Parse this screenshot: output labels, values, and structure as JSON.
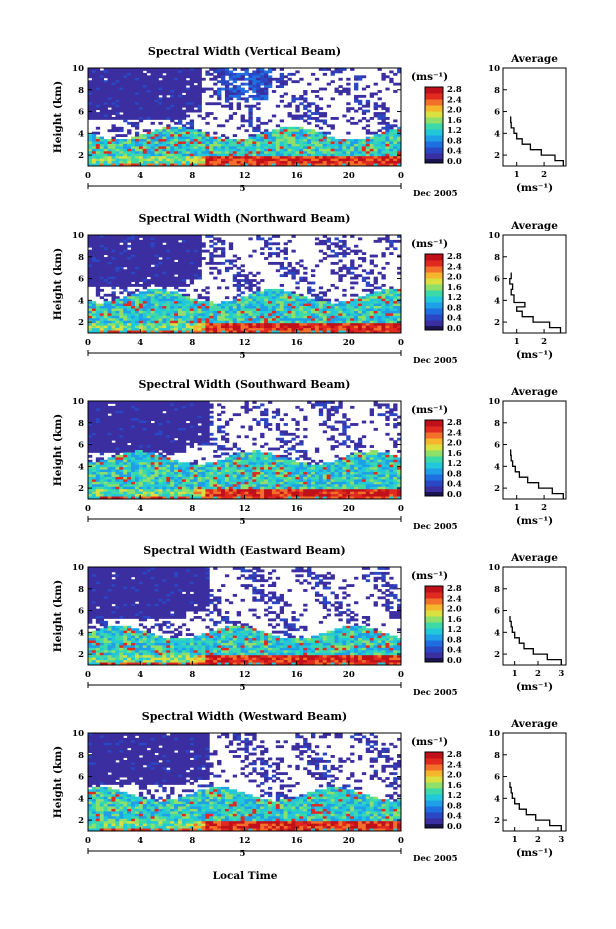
{
  "colors": {
    "scale": [
      "#3b2ea0",
      "#2a47c4",
      "#1f6fe0",
      "#1e9fe8",
      "#22c8d9",
      "#3dd9a8",
      "#8ee06a",
      "#d9e040",
      "#f5b62e",
      "#f2702a",
      "#e02a20",
      "#c0101a"
    ],
    "zero_band": "#1a1450",
    "white": "#ffffff"
  },
  "common": {
    "ylabel": "Height (km)",
    "height_ticks": [
      "2",
      "4",
      "6",
      "8",
      "10"
    ],
    "time_ticks": [
      "0",
      "4",
      "8",
      "12",
      "16",
      "20",
      "0"
    ],
    "date_label": "Dec 2005",
    "date_day": "5",
    "colorbar_unit": "(ms⁻¹)",
    "colorbar_ticks": [
      "0.0",
      "0.4",
      "0.8",
      "1.2",
      "1.6",
      "2.0",
      "2.4",
      "2.8"
    ],
    "avg_title": "Average",
    "avg_xlabel": "(ms⁻¹)",
    "xlabel": "Local Time"
  },
  "chart_data": [
    {
      "type": "heatmap",
      "title": "Spectral Width (Vertical Beam)",
      "beam": "vertical",
      "xlim": [
        0,
        24
      ],
      "ylim": [
        1,
        10
      ],
      "zlim": [
        0,
        2.8
      ],
      "z_unit": "ms-1",
      "profile": {
        "type": "line",
        "title": "Average",
        "xticks": [
          "1",
          "2"
        ],
        "xlim": [
          0.5,
          2.8
        ],
        "ylim": [
          1,
          10
        ],
        "x": [
          2.7,
          2.4,
          1.9,
          1.5,
          1.2,
          1.0,
          0.9,
          0.8,
          0.78,
          0.8
        ],
        "y": [
          1,
          1.5,
          2,
          2.5,
          3,
          3.5,
          4,
          4.5,
          5,
          5.5
        ]
      }
    },
    {
      "type": "heatmap",
      "title": "Spectral Width (Northward Beam)",
      "beam": "northward",
      "xlim": [
        0,
        24
      ],
      "ylim": [
        1,
        10
      ],
      "zlim": [
        0,
        2.8
      ],
      "z_unit": "ms-1",
      "profile": {
        "type": "line",
        "title": "Average",
        "xticks": [
          "1",
          "2"
        ],
        "xlim": [
          0.5,
          2.8
        ],
        "ylim": [
          1,
          10
        ],
        "x": [
          2.6,
          2.2,
          1.6,
          1.2,
          1.0,
          1.3,
          0.9,
          0.8,
          0.85,
          0.75,
          0.8,
          0.78
        ],
        "y": [
          1,
          1.5,
          2,
          2.5,
          3,
          3.4,
          3.8,
          4.5,
          5,
          5.5,
          6,
          6.5
        ]
      }
    },
    {
      "type": "heatmap",
      "title": "Spectral Width (Southward Beam)",
      "beam": "southward",
      "xlim": [
        0,
        24
      ],
      "ylim": [
        1,
        10
      ],
      "zlim": [
        0,
        2.8
      ],
      "z_unit": "ms-1",
      "profile": {
        "type": "line",
        "title": "Average",
        "xticks": [
          "1",
          "2"
        ],
        "xlim": [
          0.5,
          2.8
        ],
        "ylim": [
          1,
          10
        ],
        "x": [
          2.7,
          2.3,
          1.8,
          1.4,
          1.1,
          0.95,
          0.85,
          0.8,
          0.78,
          0.8
        ],
        "y": [
          1,
          1.5,
          2,
          2.5,
          3,
          3.5,
          4,
          4.5,
          5,
          5.5
        ]
      }
    },
    {
      "type": "heatmap",
      "title": "Spectral Width (Eastward Beam)",
      "beam": "eastward",
      "xlim": [
        0,
        24
      ],
      "ylim": [
        1,
        10
      ],
      "zlim": [
        0,
        2.8
      ],
      "z_unit": "ms-1",
      "profile": {
        "type": "line",
        "title": "Average",
        "xticks": [
          "1",
          "2",
          "3"
        ],
        "xlim": [
          0.5,
          3.2
        ],
        "ylim": [
          1,
          10
        ],
        "x": [
          3.0,
          2.4,
          1.8,
          1.4,
          1.2,
          1.0,
          0.9,
          0.85,
          0.8,
          0.8
        ],
        "y": [
          1,
          1.5,
          2,
          2.5,
          3,
          3.5,
          4,
          4.5,
          5,
          5.5
        ]
      }
    },
    {
      "type": "heatmap",
      "title": "Spectral Width (Westward Beam)",
      "beam": "westward",
      "xlim": [
        0,
        24
      ],
      "ylim": [
        1,
        10
      ],
      "zlim": [
        0,
        2.8
      ],
      "z_unit": "ms-1",
      "profile": {
        "type": "line",
        "title": "Average",
        "xticks": [
          "1",
          "2",
          "3"
        ],
        "xlim": [
          0.5,
          3.2
        ],
        "ylim": [
          1,
          10
        ],
        "x": [
          3.0,
          2.5,
          1.9,
          1.5,
          1.2,
          1.0,
          0.9,
          0.85,
          0.8,
          0.8
        ],
        "y": [
          1,
          1.5,
          2,
          2.5,
          3,
          3.5,
          4,
          4.5,
          5,
          5.5
        ]
      }
    }
  ]
}
